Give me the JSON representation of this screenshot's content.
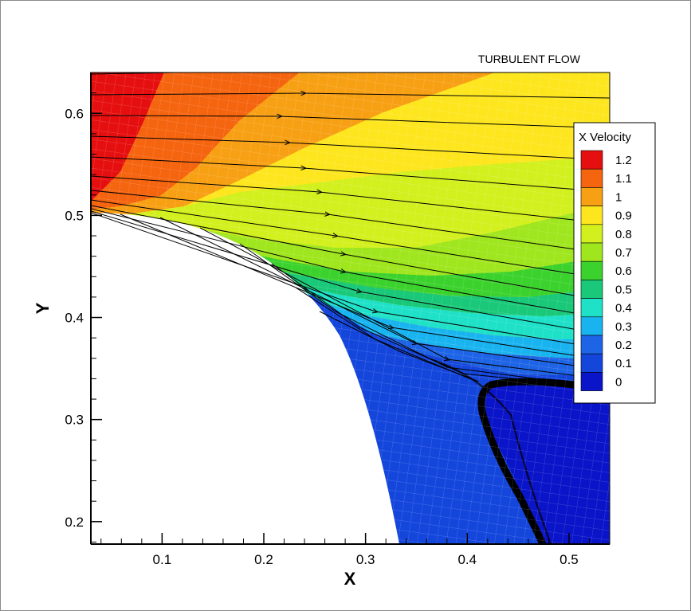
{
  "chart_data": {
    "type": "contour",
    "title": "TURBULENT FLOW",
    "xlabel": "X",
    "ylabel": "Y",
    "xlim": [
      0.03,
      0.54
    ],
    "ylim": [
      0.178,
      0.64
    ],
    "x_ticks": [
      "0.1",
      "0.2",
      "0.3",
      "0.4",
      "0.5"
    ],
    "x_tick_values": [
      0.1,
      0.2,
      0.3,
      0.4,
      0.5
    ],
    "y_ticks": [
      "0.2",
      "0.3",
      "0.4",
      "0.5",
      "0.6"
    ],
    "y_tick_values": [
      0.2,
      0.3,
      0.4,
      0.5,
      0.6
    ],
    "legend": {
      "title": "X Velocity",
      "placement": "right",
      "levels": [
        "1.2",
        "1.1",
        "1",
        "0.9",
        "0.8",
        "0.7",
        "0.6",
        "0.5",
        "0.4",
        "0.3",
        "0.2",
        "0.1",
        "0"
      ],
      "level_values": [
        1.2,
        1.1,
        1.0,
        0.9,
        0.8,
        0.7,
        0.6,
        0.5,
        0.4,
        0.3,
        0.2,
        0.1,
        0.0
      ],
      "colors": [
        "#e60f0f",
        "#f5640f",
        "#f8a014",
        "#fde61e",
        "#d2f01e",
        "#a0e61e",
        "#3cd22d",
        "#19c878",
        "#1ee1c8",
        "#19b4f0",
        "#1e64e6",
        "#1446dc",
        "#0a14c8"
      ]
    },
    "streamlines": true,
    "mesh_overlay": true
  }
}
